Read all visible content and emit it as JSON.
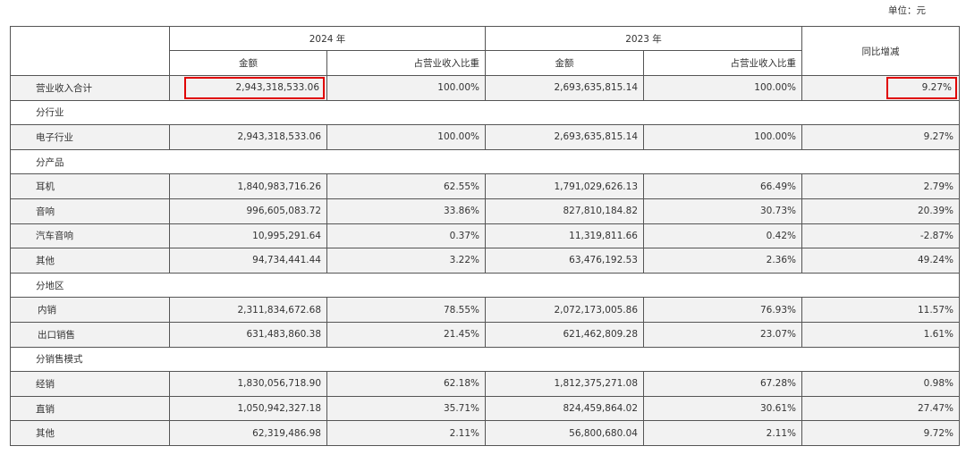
{
  "unit_label": "单位：元",
  "header": {
    "year_2024": "2024 年",
    "year_2023": "2023 年",
    "yoy": "同比增减",
    "amount": "金额",
    "ratio": "占营业收入比重"
  },
  "total": {
    "label": "营业收入合计",
    "amt_2024": "2,943,318,533.06",
    "ratio_2024": "100.00%",
    "amt_2023": "2,693,635,815.14",
    "ratio_2023": "100.00%",
    "yoy": "9.27%"
  },
  "sections": [
    {
      "title": "分行业",
      "rows": [
        {
          "label": "电子行业",
          "amt_2024": "2,943,318,533.06",
          "ratio_2024": "100.00%",
          "amt_2023": "2,693,635,815.14",
          "ratio_2023": "100.00%",
          "yoy": "9.27%"
        }
      ]
    },
    {
      "title": "分产品",
      "rows": [
        {
          "label": "耳机",
          "amt_2024": "1,840,983,716.26",
          "ratio_2024": "62.55%",
          "amt_2023": "1,791,029,626.13",
          "ratio_2023": "66.49%",
          "yoy": "2.79%"
        },
        {
          "label": "音响",
          "amt_2024": "996,605,083.72",
          "ratio_2024": "33.86%",
          "amt_2023": "827,810,184.82",
          "ratio_2023": "30.73%",
          "yoy": "20.39%"
        },
        {
          "label": "汽车音响",
          "amt_2024": "10,995,291.64",
          "ratio_2024": "0.37%",
          "amt_2023": "11,319,811.66",
          "ratio_2023": "0.42%",
          "yoy": "-2.87%"
        },
        {
          "label": "其他",
          "amt_2024": "94,734,441.44",
          "ratio_2024": "3.22%",
          "amt_2023": "63,476,192.53",
          "ratio_2023": "2.36%",
          "yoy": "49.24%"
        }
      ]
    },
    {
      "title": "分地区",
      "rows": [
        {
          "label": "内销",
          "amt_2024": "2,311,834,672.68",
          "ratio_2024": "78.55%",
          "amt_2023": "2,072,173,005.86",
          "ratio_2023": "76.93%",
          "yoy": "11.57%"
        },
        {
          "label": "出口销售",
          "amt_2024": "631,483,860.38",
          "ratio_2024": "21.45%",
          "amt_2023": "621,462,809.28",
          "ratio_2023": "23.07%",
          "yoy": "1.61%"
        }
      ]
    },
    {
      "title": "分销售模式",
      "rows": [
        {
          "label": "经销",
          "amt_2024": "1,830,056,718.90",
          "ratio_2024": "62.18%",
          "amt_2023": "1,812,375,271.08",
          "ratio_2023": "67.28%",
          "yoy": "0.98%"
        },
        {
          "label": "直销",
          "amt_2024": "1,050,942,327.18",
          "ratio_2024": "35.71%",
          "amt_2023": "824,459,864.02",
          "ratio_2023": "30.61%",
          "yoy": "27.47%"
        },
        {
          "label": "其他",
          "amt_2024": "62,319,486.98",
          "ratio_2024": "2.11%",
          "amt_2023": "56,800,680.04",
          "ratio_2023": "2.11%",
          "yoy": "9.72%"
        }
      ]
    }
  ],
  "highlight_color": "#e00000"
}
